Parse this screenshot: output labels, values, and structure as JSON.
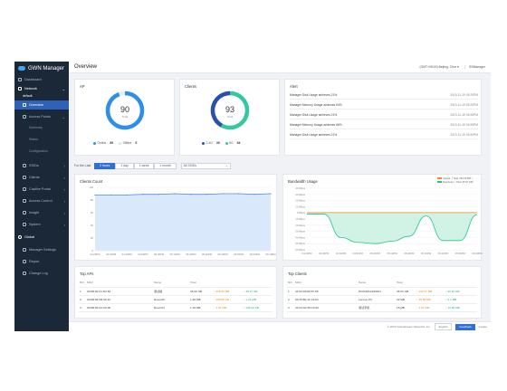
{
  "app": {
    "title": "GWN Manager"
  },
  "sidebar": {
    "dashboard": "Dashboard",
    "network": "Network",
    "network_value": "default",
    "overview": "Overview",
    "access_points": "Access Points",
    "summary": "Summary",
    "status": "Status",
    "configuration": "Configuration",
    "ssids": "SSIDs",
    "clients": "Clients",
    "captive_portal": "Captive Portal",
    "access_control": "Access Control",
    "insight": "Insight",
    "system": "System",
    "global": "Global",
    "manager_settings": "Manager Settings",
    "report": "Report",
    "change_log": "Change Log"
  },
  "header": {
    "title": "Overview",
    "timezone": "(GMT+08:00) Beijing, Chor",
    "user": "GSManager"
  },
  "ap": {
    "title": "AP",
    "total": "90",
    "total_label": "Total",
    "online_label": "Online",
    "online": "85",
    "offline_label": "Offline",
    "offline": "5"
  },
  "clients_card": {
    "title": "Clients",
    "total": "93",
    "total_label": "Total",
    "g24_label": "2.4G",
    "g24": "39",
    "g5_label": "5G",
    "g5": "54"
  },
  "alert": {
    "title": "Alert",
    "rows": [
      {
        "msg": "Manager Disk Usage achieves 21%",
        "time": "2019-11-19 05:20PM"
      },
      {
        "msg": "Manager Memory Usage achieves 64%",
        "time": "2019-11-19 05:20PM"
      },
      {
        "msg": "Manager Disk Usage achieves 21%",
        "time": "2019-11-19 04:55PM"
      },
      {
        "msg": "Manager Memory Usage achieves 66%",
        "time": "2019-11-19 04:55PM"
      },
      {
        "msg": "Manager Disk Usage achieves 21%",
        "time": "2019-11-19 04:50PM"
      }
    ]
  },
  "filter": {
    "label": "For the Last:",
    "buttons": [
      "2 hours",
      "1 day",
      "1 week",
      "1 month"
    ],
    "ssid": "All SSIDs"
  },
  "clients_count": {
    "title": "Clients Count",
    "y_ticks": [
      "100",
      "80",
      "60",
      "40",
      "20",
      "0"
    ],
    "x_ticks": [
      "04:20PM",
      "04:30PM",
      "04:40PM",
      "04:50PM",
      "05:00PM",
      "05:10PM",
      "05:20PM",
      "05:30PM",
      "05:40PM",
      "05:50PM",
      "06:00PM",
      "06:10PM"
    ]
  },
  "bandwidth": {
    "title": "Bandwidth Usage",
    "legend_upload": "Upload（ Total: 253.05 MB ）",
    "legend_download": "Download（ Total: 35.97 GB ）",
    "y_ticks": [
      "40 Mbps",
      "30 Mbps",
      "20 Mbps",
      "10 Mbps",
      "0 Mbps",
      "10 Mbps",
      "20 Mbps",
      "30 Mbps",
      "40 Mbps",
      "50 Mbps",
      "60 Mbps"
    ],
    "x_ticks": [
      "04:20PM",
      "04:30PM",
      "04:40PM",
      "04:50PM",
      "05:00PM",
      "05:10PM",
      "05:20PM",
      "05:30PM",
      "05:40PM",
      "05:50PM",
      "06:00PM"
    ]
  },
  "chart_data": [
    {
      "type": "area",
      "title": "Clients Count",
      "xlabel": "",
      "ylabel": "",
      "ylim": [
        0,
        100
      ],
      "x": [
        "04:20PM",
        "04:30PM",
        "04:40PM",
        "04:50PM",
        "05:00PM",
        "05:10PM",
        "05:20PM",
        "05:30PM",
        "05:40PM",
        "05:50PM",
        "06:00PM",
        "06:10PM"
      ],
      "series": [
        {
          "values": [
            88,
            88,
            88,
            89,
            89,
            90,
            89,
            89,
            90,
            90,
            89,
            90
          ]
        }
      ],
      "grid": true
    },
    {
      "type": "area",
      "title": "Bandwidth Usage",
      "ylim": [
        -60,
        40
      ],
      "x": [
        "04:20PM",
        "04:30PM",
        "04:40PM",
        "04:50PM",
        "05:00PM",
        "05:10PM",
        "05:20PM",
        "05:30PM",
        "05:40PM",
        "05:50PM",
        "06:00PM"
      ],
      "series": [
        {
          "name": "Upload（ Total: 253.05 MB ）",
          "values": [
            0.5,
            0.5,
            0.5,
            0.5,
            0.5,
            0.5,
            0.5,
            0.5,
            0.5,
            0.5,
            0.5
          ]
        },
        {
          "name": "Download（ Total: 35.97 GB ）",
          "values": [
            -2,
            -2,
            -40,
            -48,
            -50,
            -46,
            -38,
            -5,
            -45,
            -45,
            -3
          ]
        }
      ],
      "legend": "top-right",
      "grid": true
    }
  ],
  "top_aps": {
    "title": "Top APs",
    "headers": [
      "NO.",
      "MAC",
      "Name",
      "Total",
      "",
      ""
    ],
    "rows": [
      {
        "no": "1",
        "mac": "00:0B:82:A1:D2:84",
        "name": "测试组",
        "total": "35.69 GB",
        "up": "↑ 228.34 MB",
        "down": "↓ 35.47 GB"
      },
      {
        "no": "2",
        "mac": "00:0B:82:FB:93:4C",
        "name": "Room06",
        "total": "1.48 MB",
        "up": "↑ 265.58 KB",
        "down": "↓ 1.23 MB"
      },
      {
        "no": "3",
        "mac": "00:0B:82:A4:2D:00",
        "name": "Room04",
        "total": "1.19 MB",
        "up": "↑ 1.02 MB",
        "down": "↓ 195.22 KB"
      }
    ]
  },
  "top_clients": {
    "title": "Top Clients",
    "headers": [
      "NO.",
      "MAC",
      "Name",
      "Total",
      "",
      ""
    ],
    "rows": [
      {
        "no": "1",
        "mac": "44:94:D9:89:57:08",
        "name": "PC201812180941",
        "total": "35.64 GB",
        "up": "↑ 192.37 MB",
        "down": "↓ 35.46 GB"
      },
      {
        "no": "2",
        "mac": "00:15:BF:1F:16:93",
        "name": "Lenovo PC",
        "total": "42 MB",
        "up": "↑ 35.89 MB",
        "down": "↓ 6.1 MB"
      },
      {
        "no": "3",
        "mac": "44:94:A0:35:C0:40",
        "name": "测试手机",
        "total": "15 MB",
        "up": "↑ 1.01 MB",
        "down": "↓ 13.99 MB"
      }
    ]
  },
  "footer": {
    "copyright": "© 2019 Grandstream Networks, Inc.",
    "language": "English",
    "feedback": "Feedback",
    "cookie": "Cookie"
  },
  "colors": {
    "sidebar": "#1b2838",
    "accent": "#2e6fd8",
    "donut_ap": "#2e8fe8",
    "donut_24": "#2b4fb0",
    "donut_5": "#35c7a0",
    "upload": "#f08a24",
    "download": "#22c48b"
  }
}
